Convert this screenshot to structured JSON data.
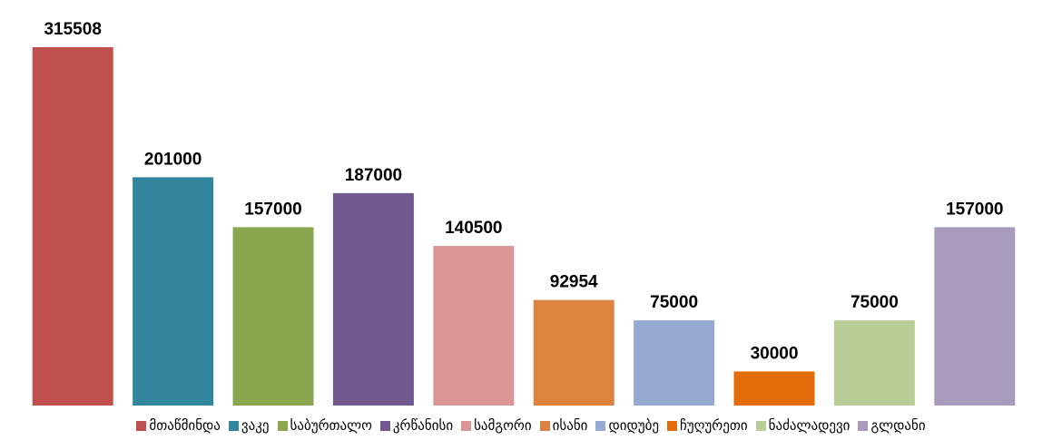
{
  "chart_data": {
    "type": "bar",
    "categories": [
      "მთაწმინდა",
      "ვაკე",
      "საბურთალო",
      "კრწანისი",
      "სამგორი",
      "ისანი",
      "დიდუბე",
      "ჩუღურეთი",
      "ნაძალადევი",
      "გლდანი"
    ],
    "values": [
      315508,
      201000,
      157000,
      187000,
      140500,
      92954,
      75000,
      30000,
      75000,
      157000
    ],
    "colors": [
      "#c0504d",
      "#31859c",
      "#8aa64f",
      "#71588f",
      "#d99694",
      "#dd8340",
      "#95a9d1",
      "#e46c0a",
      "#b9cd96",
      "#a99bbd"
    ],
    "legend": "bottom"
  }
}
